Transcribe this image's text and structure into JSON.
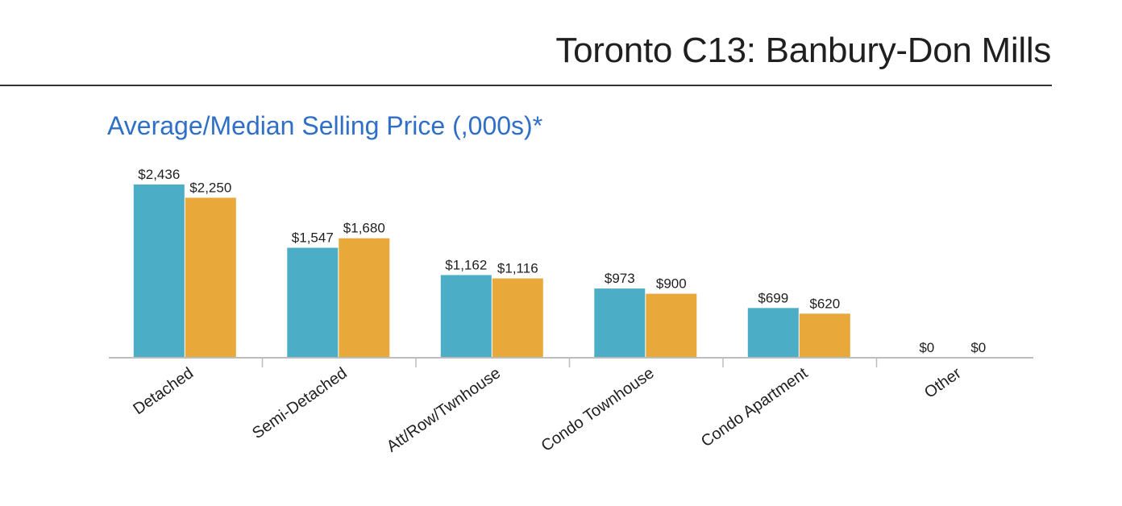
{
  "header": {
    "title": "Toronto C13: Banbury-Don Mills"
  },
  "colors": {
    "average": "#4badc6",
    "median": "#e8a93a",
    "axis": "#bdbdbd",
    "title": "#2f6fc7"
  },
  "chart_data": {
    "type": "bar",
    "title": "Average/Median Selling Price (,000s)*",
    "xlabel": "",
    "ylabel": "",
    "ylim": [
      0,
      2600
    ],
    "grid": false,
    "categories": [
      "Detached",
      "Semi-Detached",
      "Att/Row/Twnhouse",
      "Condo Townhouse",
      "Condo Apartment",
      "Other"
    ],
    "series": [
      {
        "name": "Average",
        "values": [
          2436,
          1547,
          1162,
          973,
          699,
          0
        ],
        "labels": [
          "$2,436",
          "$1,547",
          "$1,162",
          "$973",
          "$699",
          "$0"
        ]
      },
      {
        "name": "Median",
        "values": [
          2250,
          1680,
          1116,
          900,
          620,
          0
        ],
        "labels": [
          "$2,250",
          "$1,680",
          "$1,116",
          "$900",
          "$620",
          "$0"
        ]
      }
    ]
  }
}
